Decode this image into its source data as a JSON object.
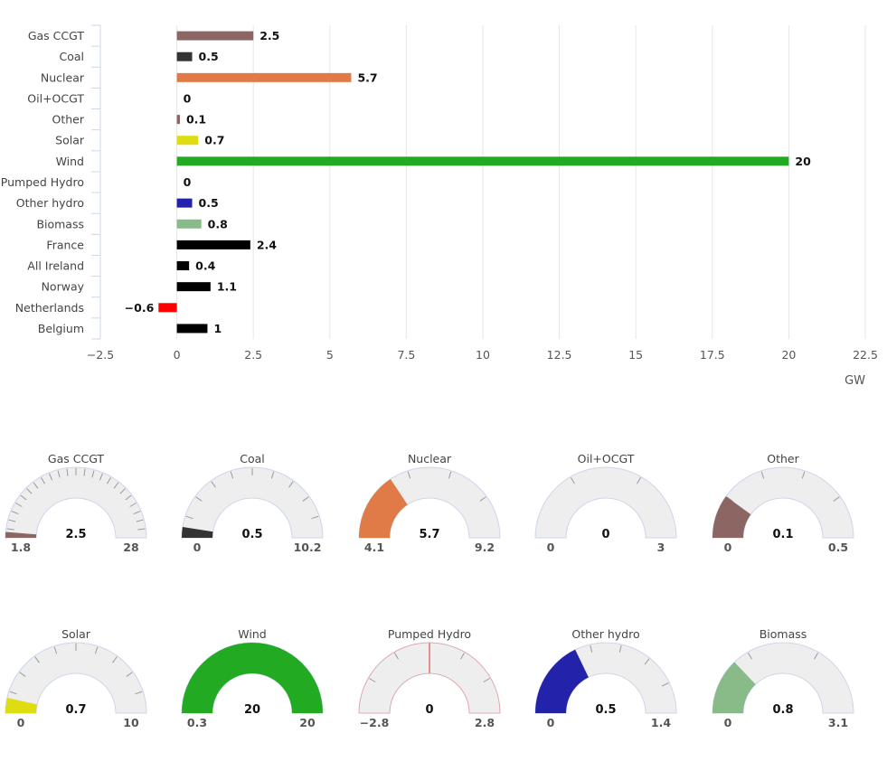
{
  "chart_data": [
    {
      "type": "bar",
      "orientation": "horizontal",
      "title": "",
      "xlabel": "GW",
      "ylabel": "",
      "xlim": [
        -2.5,
        22.5
      ],
      "x_ticks": [
        -2.5,
        0,
        2.5,
        5,
        7.5,
        10,
        12.5,
        15,
        17.5,
        20,
        22.5
      ],
      "x_tick_labels": [
        "−2.5",
        "0",
        "2.5",
        "5",
        "7.5",
        "10",
        "12.5",
        "15",
        "17.5",
        "20",
        "22.5"
      ],
      "grid": true,
      "categories": [
        "Gas CCGT",
        "Coal",
        "Nuclear",
        "Oil+OCGT",
        "Other",
        "Solar",
        "Wind",
        "Pumped Hydro",
        "Other hydro",
        "Biomass",
        "France",
        "All Ireland",
        "Norway",
        "Netherlands",
        "Belgium"
      ],
      "values": [
        2.5,
        0.5,
        5.7,
        0,
        0.1,
        0.7,
        20,
        0,
        0.5,
        0.8,
        2.4,
        0.4,
        1.1,
        -0.6,
        1
      ],
      "value_labels": [
        "2.5",
        "0.5",
        "5.7",
        "0",
        "0.1",
        "0.7",
        "20",
        "0",
        "0.5",
        "0.8",
        "2.4",
        "0.4",
        "1.1",
        "−0.6",
        "1"
      ],
      "colors": [
        "#8b6663",
        "#333333",
        "#e07b47",
        "#333333",
        "#8b6663",
        "#dddd11",
        "#22aa22",
        "#333333",
        "#2222aa",
        "#88bb88",
        "#000000",
        "#000000",
        "#000000",
        "#ff0000",
        "#000000"
      ]
    },
    {
      "type": "gauge",
      "gauges": [
        {
          "name": "Gas CCGT",
          "value": 2.5,
          "min": 1.8,
          "max": 28,
          "value_label": "2.5",
          "min_label": "1.8",
          "max_label": "28",
          "color": "#8b6663",
          "ticks": 24
        },
        {
          "name": "Coal",
          "value": 0.5,
          "min": 0,
          "max": 10.2,
          "value_label": "0.5",
          "min_label": "0",
          "max_label": "10.2",
          "color": "#333333",
          "ticks": 10
        },
        {
          "name": "Nuclear",
          "value": 5.7,
          "min": 4.1,
          "max": 9.2,
          "value_label": "5.7",
          "min_label": "4.1",
          "max_label": "9.2",
          "color": "#e07b47",
          "ticks": 5
        },
        {
          "name": "Oil+OCGT",
          "value": 0,
          "min": 0,
          "max": 3,
          "value_label": "0",
          "min_label": "0",
          "max_label": "3",
          "color": "#333333",
          "ticks": 3
        },
        {
          "name": "Other",
          "value": 0.1,
          "min": 0,
          "max": 0.5,
          "value_label": "0.1",
          "min_label": "0",
          "max_label": "0.5",
          "color": "#8b6663",
          "ticks": 5
        },
        {
          "name": "Solar",
          "value": 0.7,
          "min": 0,
          "max": 10,
          "value_label": "0.7",
          "min_label": "0",
          "max_label": "10",
          "color": "#dddd11",
          "ticks": 10
        },
        {
          "name": "Wind",
          "value": 20,
          "min": 0.3,
          "max": 20,
          "value_label": "20",
          "min_label": "0.3",
          "max_label": "20",
          "color": "#22aa22",
          "ticks": 20
        },
        {
          "name": "Pumped Hydro",
          "value": 0,
          "min": -2.8,
          "max": 2.8,
          "value_label": "0",
          "min_label": "−2.8",
          "max_label": "2.8",
          "color": "#d33333",
          "ticks": 6
        },
        {
          "name": "Other hydro",
          "value": 0.5,
          "min": 0,
          "max": 1.4,
          "value_label": "0.5",
          "min_label": "0",
          "max_label": "1.4",
          "color": "#2222aa",
          "ticks": 7
        },
        {
          "name": "Biomass",
          "value": 0.8,
          "min": 0,
          "max": 3.1,
          "value_label": "0.8",
          "min_label": "0",
          "max_label": "3.1",
          "color": "#88bb88",
          "ticks": 3
        }
      ]
    }
  ]
}
